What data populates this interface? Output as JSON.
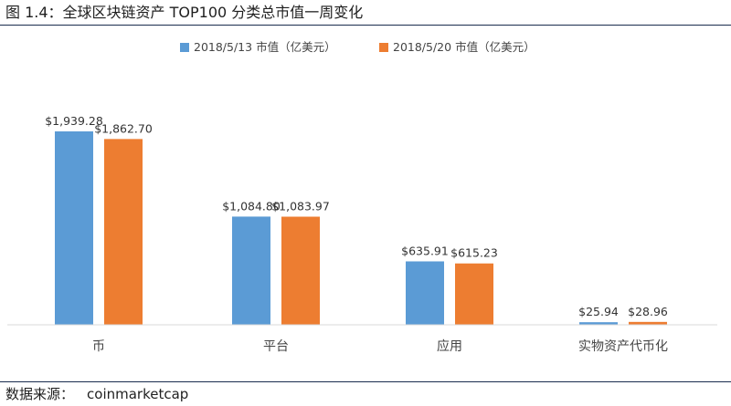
{
  "figure": {
    "title": "图 1.4：全球区块链资产 TOP100 分类总市值一周变化",
    "source_label": "数据来源：",
    "source_value": "coinmarketcap"
  },
  "colors": {
    "series_1": "#5b9bd5",
    "series_2": "#ed7d31",
    "rule": "#1a2c4e",
    "axis": "#d9d9d9"
  },
  "chart_data": {
    "type": "bar",
    "title": "",
    "xlabel": "",
    "ylabel": "",
    "categories": [
      "币",
      "平台",
      "应用",
      "实物资产代币化"
    ],
    "series": [
      {
        "name": "2018/5/13 市值（亿美元）",
        "values": [
          1939.28,
          1084.8,
          635.91,
          25.94
        ],
        "labels": [
          "$1,939.28",
          "$1,084.80",
          "$635.91",
          "$25.94"
        ]
      },
      {
        "name": "2018/5/20 市值（亿美元）",
        "values": [
          1862.7,
          1083.97,
          615.23,
          28.96
        ],
        "labels": [
          "$1,862.70",
          "$1,083.97",
          "$615.23",
          "$28.96"
        ]
      }
    ],
    "ylim": [
      0,
      2000
    ],
    "grid": false,
    "y_axis_visible": false,
    "legend_position": "top-center"
  }
}
